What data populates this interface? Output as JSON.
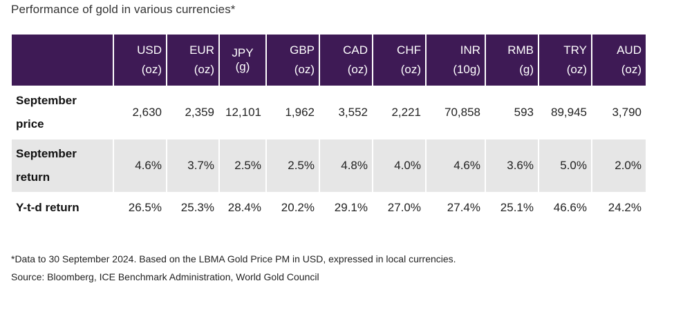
{
  "title": "Performance of gold in various currencies*",
  "table": {
    "columns": [
      {
        "line1": "USD",
        "line2": "(oz)"
      },
      {
        "line1": "EUR",
        "line2": "(oz)"
      },
      {
        "line1": "JPY (g)",
        "line2": ""
      },
      {
        "line1": "GBP",
        "line2": "(oz)"
      },
      {
        "line1": "CAD",
        "line2": "(oz)"
      },
      {
        "line1": "CHF",
        "line2": "(oz)"
      },
      {
        "line1": "INR",
        "line2": "(10g)"
      },
      {
        "line1": "RMB",
        "line2": "(g)"
      },
      {
        "line1": "TRY",
        "line2": "(oz)"
      },
      {
        "line1": "AUD",
        "line2": "(oz)"
      }
    ],
    "rows": [
      {
        "label_line1": "September",
        "label_line2": "price",
        "values": [
          "2,630",
          "2,359",
          "12,101",
          "1,962",
          "3,552",
          "2,221",
          "70,858",
          "593",
          "89,945",
          "3,790"
        ]
      },
      {
        "label_line1": "September",
        "label_line2": "return",
        "values": [
          "4.6%",
          "3.7%",
          "2.5%",
          "2.5%",
          "4.8%",
          "4.0%",
          "4.6%",
          "3.6%",
          "5.0%",
          "2.0%"
        ]
      },
      {
        "label_line1": "Y-t-d return",
        "label_line2": "",
        "values": [
          "26.5%",
          "25.3%",
          "28.4%",
          "20.2%",
          "29.1%",
          "27.0%",
          "27.4%",
          "25.1%",
          "46.6%",
          "24.2%"
        ]
      }
    ]
  },
  "footnote": "*Data to 30 September 2024. Based on the LBMA Gold Price PM in USD, expressed in local currencies.",
  "source": "Source: Bloomberg, ICE Benchmark Administration, World Gold Council",
  "colors": {
    "header_bg": "#3e1a55",
    "header_text": "#ffffff",
    "band_row_bg": "#e6e6e6"
  }
}
